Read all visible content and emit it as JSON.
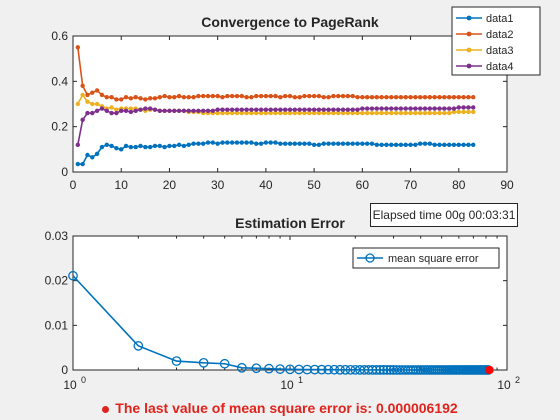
{
  "elapsed_label": "Elapsed time 00g 00:03:31",
  "status": {
    "text": "The last value of mean square error is: 0.000006192"
  },
  "colors": {
    "data1": "#0072bd",
    "data2": "#d95319",
    "data3": "#edb120",
    "data4": "#7e2f8e",
    "mse": "#0072bd",
    "last_point": "#ff0000"
  },
  "chart_data": [
    {
      "type": "line",
      "title": "Convergence to PageRank",
      "xlim": [
        0,
        90
      ],
      "ylim": [
        0,
        0.6
      ],
      "xticks": [
        0,
        10,
        20,
        30,
        40,
        50,
        60,
        70,
        80,
        90
      ],
      "yticks": [
        0,
        0.2,
        0.4,
        0.6
      ],
      "legend": "top-right",
      "x": [
        1,
        2,
        3,
        4,
        5,
        6,
        7,
        8,
        9,
        10,
        11,
        12,
        13,
        14,
        15,
        16,
        17,
        18,
        19,
        20,
        21,
        22,
        23,
        24,
        25,
        26,
        27,
        28,
        29,
        30,
        31,
        32,
        33,
        34,
        35,
        36,
        37,
        38,
        39,
        40,
        41,
        42,
        43,
        44,
        45,
        46,
        47,
        48,
        49,
        50,
        51,
        52,
        53,
        54,
        55,
        56,
        57,
        58,
        59,
        60,
        61,
        62,
        63,
        64,
        65,
        66,
        67,
        68,
        69,
        70,
        71,
        72,
        73,
        74,
        75,
        76,
        77,
        78,
        79,
        80,
        81,
        82,
        83
      ],
      "series": [
        {
          "name": "data1",
          "values": [
            0.035,
            0.035,
            0.075,
            0.065,
            0.08,
            0.11,
            0.12,
            0.115,
            0.105,
            0.1,
            0.115,
            0.11,
            0.11,
            0.115,
            0.11,
            0.11,
            0.115,
            0.115,
            0.11,
            0.115,
            0.115,
            0.12,
            0.115,
            0.12,
            0.125,
            0.125,
            0.125,
            0.13,
            0.13,
            0.125,
            0.13,
            0.13,
            0.13,
            0.13,
            0.13,
            0.13,
            0.13,
            0.125,
            0.125,
            0.13,
            0.13,
            0.13,
            0.125,
            0.125,
            0.125,
            0.125,
            0.125,
            0.125,
            0.125,
            0.12,
            0.12,
            0.125,
            0.125,
            0.125,
            0.125,
            0.125,
            0.125,
            0.125,
            0.125,
            0.125,
            0.125,
            0.125,
            0.12,
            0.12,
            0.12,
            0.12,
            0.12,
            0.12,
            0.12,
            0.12,
            0.12,
            0.125,
            0.125,
            0.125,
            0.12,
            0.12,
            0.12,
            0.12,
            0.12,
            0.12,
            0.12,
            0.12,
            0.12
          ]
        },
        {
          "name": "data2",
          "values": [
            0.55,
            0.38,
            0.34,
            0.35,
            0.36,
            0.34,
            0.33,
            0.33,
            0.32,
            0.32,
            0.33,
            0.325,
            0.33,
            0.325,
            0.32,
            0.325,
            0.325,
            0.33,
            0.335,
            0.33,
            0.33,
            0.335,
            0.33,
            0.33,
            0.33,
            0.335,
            0.335,
            0.335,
            0.335,
            0.335,
            0.33,
            0.335,
            0.335,
            0.335,
            0.335,
            0.33,
            0.33,
            0.335,
            0.335,
            0.335,
            0.335,
            0.335,
            0.33,
            0.335,
            0.335,
            0.33,
            0.33,
            0.335,
            0.335,
            0.335,
            0.335,
            0.33,
            0.33,
            0.335,
            0.335,
            0.335,
            0.335,
            0.335,
            0.33,
            0.33,
            0.33,
            0.33,
            0.33,
            0.33,
            0.33,
            0.33,
            0.33,
            0.33,
            0.33,
            0.33,
            0.33,
            0.33,
            0.33,
            0.33,
            0.33,
            0.33,
            0.33,
            0.33,
            0.33,
            0.33,
            0.33,
            0.33,
            0.33
          ]
        },
        {
          "name": "data3",
          "values": [
            0.3,
            0.34,
            0.31,
            0.3,
            0.3,
            0.29,
            0.28,
            0.285,
            0.275,
            0.28,
            0.28,
            0.28,
            0.28,
            0.275,
            0.27,
            0.275,
            0.275,
            0.27,
            0.27,
            0.27,
            0.27,
            0.27,
            0.27,
            0.265,
            0.265,
            0.265,
            0.26,
            0.26,
            0.26,
            0.26,
            0.26,
            0.26,
            0.26,
            0.26,
            0.26,
            0.26,
            0.26,
            0.26,
            0.26,
            0.26,
            0.26,
            0.26,
            0.26,
            0.26,
            0.26,
            0.26,
            0.26,
            0.26,
            0.26,
            0.26,
            0.26,
            0.26,
            0.26,
            0.26,
            0.26,
            0.26,
            0.26,
            0.26,
            0.26,
            0.26,
            0.26,
            0.26,
            0.26,
            0.26,
            0.26,
            0.26,
            0.26,
            0.26,
            0.26,
            0.26,
            0.26,
            0.26,
            0.26,
            0.26,
            0.26,
            0.26,
            0.26,
            0.26,
            0.265,
            0.265,
            0.265,
            0.265,
            0.265
          ]
        },
        {
          "name": "data4",
          "values": [
            0.12,
            0.23,
            0.26,
            0.26,
            0.27,
            0.28,
            0.27,
            0.26,
            0.26,
            0.27,
            0.27,
            0.265,
            0.27,
            0.275,
            0.28,
            0.28,
            0.275,
            0.27,
            0.27,
            0.27,
            0.27,
            0.27,
            0.27,
            0.27,
            0.27,
            0.27,
            0.27,
            0.27,
            0.27,
            0.275,
            0.275,
            0.275,
            0.275,
            0.275,
            0.275,
            0.275,
            0.275,
            0.275,
            0.275,
            0.275,
            0.275,
            0.275,
            0.275,
            0.275,
            0.275,
            0.275,
            0.275,
            0.275,
            0.275,
            0.275,
            0.275,
            0.275,
            0.275,
            0.275,
            0.275,
            0.275,
            0.275,
            0.275,
            0.275,
            0.28,
            0.28,
            0.28,
            0.28,
            0.28,
            0.28,
            0.28,
            0.28,
            0.28,
            0.28,
            0.28,
            0.28,
            0.28,
            0.28,
            0.28,
            0.28,
            0.28,
            0.28,
            0.28,
            0.28,
            0.285,
            0.285,
            0.285,
            0.285
          ]
        }
      ]
    },
    {
      "type": "line",
      "title": "Estimation Error",
      "xscale": "log",
      "xlim": [
        1,
        100
      ],
      "ylim": [
        0,
        0.03
      ],
      "yticks": [
        0,
        0.01,
        0.02,
        0.03
      ],
      "xtick_labels": [
        {
          "base": "10",
          "exp": "0"
        },
        {
          "base": "10",
          "exp": "1"
        },
        {
          "base": "10",
          "exp": "2"
        }
      ],
      "legend": "top-right",
      "marker": "circle",
      "x": [
        1,
        2,
        3,
        4,
        5,
        6,
        7,
        8,
        9,
        10,
        11,
        12,
        13,
        14,
        15,
        16,
        17,
        18,
        19,
        20,
        21,
        22,
        23,
        24,
        25,
        26,
        27,
        28,
        29,
        30,
        31,
        32,
        33,
        34,
        35,
        36,
        37,
        38,
        39,
        40,
        41,
        42,
        43,
        44,
        45,
        46,
        47,
        48,
        49,
        50,
        51,
        52,
        53,
        54,
        55,
        56,
        57,
        58,
        59,
        60,
        61,
        62,
        63,
        64,
        65,
        66,
        67,
        68,
        69,
        70,
        71,
        72,
        73,
        74,
        75,
        76,
        77,
        78,
        79,
        80,
        81,
        82,
        83
      ],
      "series": [
        {
          "name": "mean square error",
          "values": [
            0.0211,
            0.0054,
            0.002,
            0.0016,
            0.0014,
            0.0005,
            0.0004,
            0.0003,
            0.0002,
            0.00015,
            0.00012,
            0.0001,
            9e-05,
            8e-05,
            7e-05,
            6e-05,
            5e-05,
            5e-05,
            4e-05,
            4e-05,
            3e-05,
            3e-05,
            3e-05,
            2e-05,
            2e-05,
            2e-05,
            2e-05,
            2e-05,
            2e-05,
            2e-05,
            1e-05,
            1e-05,
            1e-05,
            1e-05,
            1e-05,
            1e-05,
            1e-05,
            1e-05,
            1e-05,
            1e-05,
            1e-05,
            1e-05,
            1e-05,
            1e-05,
            1e-05,
            1e-05,
            1e-05,
            1e-05,
            1e-05,
            1e-05,
            1e-05,
            1e-05,
            1e-05,
            1e-05,
            1e-05,
            1e-05,
            1e-05,
            1e-05,
            1e-05,
            1e-05,
            1e-05,
            1e-05,
            1e-05,
            1e-05,
            1e-05,
            1e-05,
            1e-05,
            1e-05,
            1e-05,
            1e-05,
            1e-05,
            1e-05,
            1e-05,
            1e-05,
            1e-05,
            1e-05,
            1e-05,
            1e-05,
            1e-05,
            1e-05,
            1e-05,
            1e-05,
            6.192e-06
          ]
        }
      ]
    }
  ]
}
